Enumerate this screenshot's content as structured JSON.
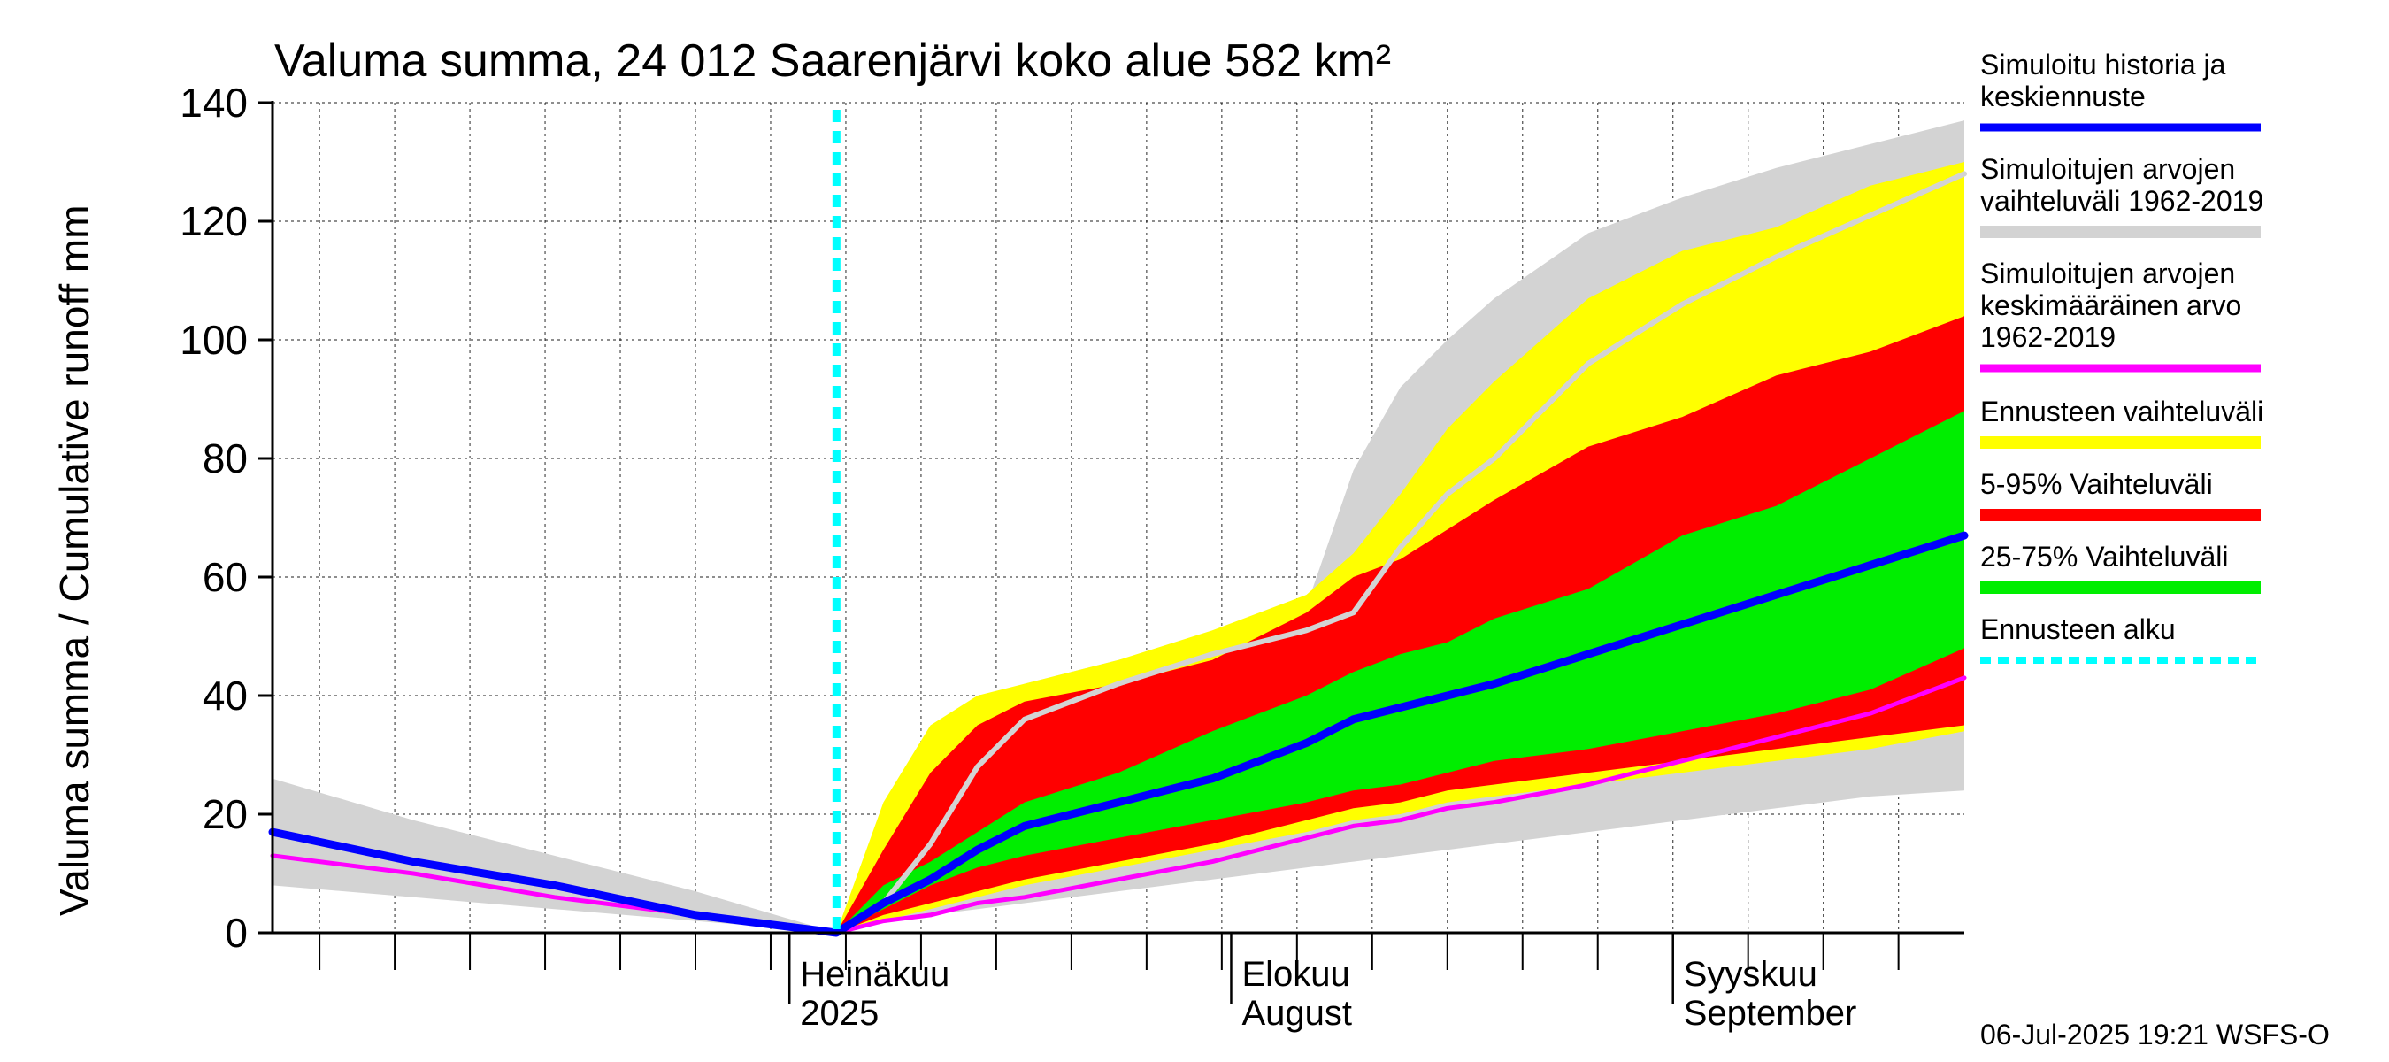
{
  "chart_data": {
    "type": "area",
    "title": "Valuma summa, 24 012 Saarenjärvi koko alue 582 km²",
    "ylabel": "Valuma summa / Cumulative runoff    mm",
    "xlabel": "",
    "ylim": [
      0,
      140
    ],
    "y_ticks": [
      "0",
      "20",
      "40",
      "60",
      "80",
      "100",
      "120",
      "140"
    ],
    "x_range_days": [
      -60,
      120
    ],
    "x_ticks": [
      {
        "day": -5,
        "line1": "Heinäkuu",
        "line2": "2025"
      },
      {
        "day": 42,
        "line1": "Elokuu",
        "line2": "August"
      },
      {
        "day": 89,
        "line1": "Syyskuu",
        "line2": "September"
      }
    ],
    "forecast_start_day": 0,
    "grid": true,
    "legend_position": "right",
    "x": [
      -60,
      -45,
      -30,
      -15,
      0,
      5,
      10,
      15,
      20,
      30,
      40,
      50,
      55,
      60,
      65,
      70,
      80,
      90,
      100,
      110,
      120
    ],
    "series": [
      {
        "name": "Simuloitujen arvojen vaihteluväli 1962-2019",
        "role": "band",
        "color": "#d3d3d3",
        "lower": [
          8,
          6,
          4,
          2,
          0,
          2,
          3,
          4,
          5,
          7,
          9,
          11,
          12,
          13,
          14,
          15,
          17,
          19,
          21,
          23,
          24
        ],
        "upper": [
          26,
          19,
          13,
          7,
          0,
          10,
          25,
          37,
          42,
          46,
          50,
          55,
          78,
          92,
          100,
          107,
          118,
          124,
          129,
          133,
          137
        ]
      },
      {
        "name": "Ennusteen vaihteluväli",
        "role": "band",
        "color": "#ffff00",
        "lower": [
          null,
          null,
          null,
          null,
          0,
          2,
          4,
          6,
          8,
          11,
          14,
          17,
          19,
          20,
          22,
          23,
          25,
          27,
          29,
          31,
          34
        ],
        "upper": [
          null,
          null,
          null,
          null,
          0,
          22,
          35,
          40,
          42,
          46,
          51,
          57,
          64,
          74,
          85,
          93,
          107,
          115,
          119,
          126,
          130
        ]
      },
      {
        "name": "5-95% Vaihteluväli",
        "role": "band",
        "color": "#ff0000",
        "lower": [
          null,
          null,
          null,
          null,
          0,
          3,
          5,
          7,
          9,
          12,
          15,
          19,
          21,
          22,
          24,
          25,
          27,
          29,
          31,
          33,
          35
        ],
        "upper": [
          null,
          null,
          null,
          null,
          0,
          14,
          27,
          35,
          39,
          42,
          46,
          54,
          60,
          63,
          68,
          73,
          82,
          87,
          94,
          98,
          104
        ]
      },
      {
        "name": "25-75% Vaihteluväli",
        "role": "band",
        "color": "#00ee00",
        "lower": [
          null,
          null,
          null,
          null,
          0,
          4,
          8,
          11,
          13,
          16,
          19,
          22,
          24,
          25,
          27,
          29,
          31,
          34,
          37,
          41,
          48
        ],
        "upper": [
          null,
          null,
          null,
          null,
          0,
          8,
          12,
          17,
          22,
          27,
          34,
          40,
          44,
          47,
          49,
          53,
          58,
          67,
          72,
          80,
          88
        ]
      },
      {
        "name": "Simuloitu historia ja keskiennuste",
        "role": "line",
        "color": "#0000ff",
        "values": [
          17,
          12,
          8,
          3,
          0,
          5,
          9,
          14,
          18,
          22,
          26,
          32,
          36,
          38,
          40,
          42,
          47,
          52,
          57,
          62,
          67
        ]
      },
      {
        "name": "Simuloitujen arvojen keskimääräinen arvo 1962-2019",
        "role": "line",
        "color": "#ff00ff",
        "values": [
          13,
          10,
          6,
          3,
          0,
          2,
          3,
          5,
          6,
          9,
          12,
          16,
          18,
          19,
          21,
          22,
          25,
          29,
          33,
          37,
          43
        ]
      },
      {
        "name": "",
        "role": "line",
        "color": "#d3d3d3",
        "values": [
          null,
          null,
          null,
          null,
          0,
          5,
          15,
          28,
          36,
          42,
          47,
          51,
          54,
          65,
          74,
          80,
          96,
          106,
          114,
          121,
          128
        ]
      }
    ],
    "legend": [
      {
        "label": "Simuloitu historia ja keskiennuste",
        "color": "#0000ff",
        "style": "line"
      },
      {
        "label": "Simuloitujen arvojen vaihteluväli 1962-2019",
        "color": "#d3d3d3",
        "style": "thick"
      },
      {
        "label": "Simuloitujen arvojen keskimääräinen arvo 1962-2019",
        "color": "#ff00ff",
        "style": "line"
      },
      {
        "label": "Ennusteen vaihteluväli",
        "color": "#ffff00",
        "style": "thick"
      },
      {
        "label": "5-95% Vaihteluväli",
        "color": "#ff0000",
        "style": "thick"
      },
      {
        "label": "25-75% Vaihteluväli",
        "color": "#00ee00",
        "style": "thick"
      },
      {
        "label": "Ennusteen alku",
        "color": "#00ffff",
        "style": "dashed"
      }
    ],
    "legend_lines": [
      [
        "Simuloitu historia ja",
        "keskiennuste"
      ],
      [
        "Simuloitujen arvojen",
        "vaihteluväli 1962-2019"
      ],
      [
        "Simuloitujen arvojen",
        "keskimääräinen arvo",
        "    1962-2019"
      ],
      [
        "Ennusteen vaihteluväli"
      ],
      [
        "5-95% Vaihteluväli"
      ],
      [
        "25-75% Vaihteluväli"
      ],
      [
        "Ennusteen alku"
      ]
    ],
    "footer": "06-Jul-2025 19:21 WSFS-O"
  }
}
